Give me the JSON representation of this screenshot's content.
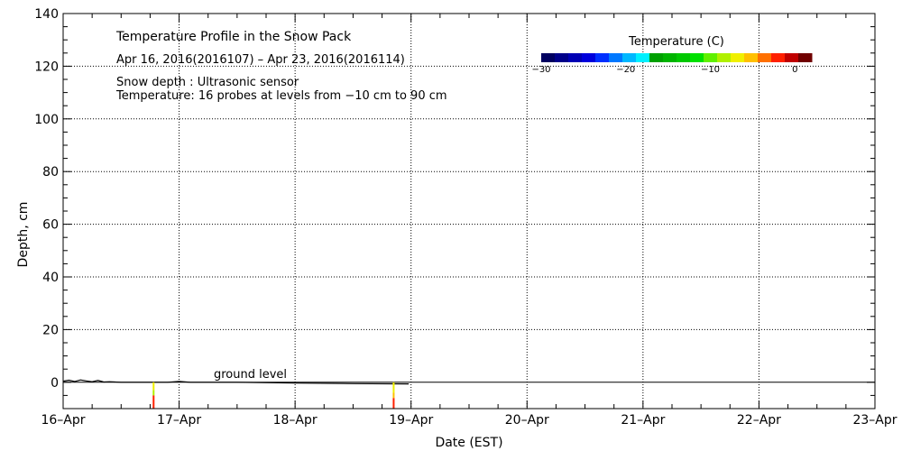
{
  "chart_data": {
    "type": "heatmap",
    "title": "Temperature Profile in the Snow Pack",
    "subtitle": "Apr 16, 2016(2016107) – Apr 23, 2016(2016114)",
    "notes": [
      "Snow depth : Ultrasonic sensor",
      "Temperature: 16 probes at levels from −10 cm to 90 cm"
    ],
    "xlabel": "Date (EST)",
    "ylabel": "Depth, cm",
    "x_ticks": [
      "16–Apr",
      "17–Apr",
      "18–Apr",
      "19–Apr",
      "20–Apr",
      "21–Apr",
      "22–Apr",
      "23–Apr"
    ],
    "y_ticks": [
      "0",
      "20",
      "40",
      "60",
      "80",
      "100",
      "120",
      "140"
    ],
    "xlim": [
      "2016-04-16",
      "2016-04-23"
    ],
    "ylim": [
      -10,
      140
    ],
    "grid": true,
    "ground_level_label": "ground level",
    "colorbar": {
      "title": "Temperature (C)",
      "range": [
        -30,
        2
      ],
      "tick_values": [
        -30,
        -20,
        -10,
        0
      ],
      "tick_labels": [
        "−30",
        "−20",
        "−10",
        "0"
      ],
      "colors": [
        "#000060",
        "#00008a",
        "#0000b4",
        "#0000dc",
        "#0030ff",
        "#0078ff",
        "#00b8ff",
        "#00f0ff",
        "#00a000",
        "#00b400",
        "#00c800",
        "#00e000",
        "#60f000",
        "#b0f000",
        "#f0f000",
        "#ffc000",
        "#ff7000",
        "#ff2000",
        "#c00000",
        "#700000"
      ]
    },
    "series": [
      {
        "type": "snow-depth",
        "points": [
          [
            0.0,
            0.4
          ],
          [
            0.05,
            0.8
          ],
          [
            0.1,
            0.3
          ],
          [
            0.15,
            0.9
          ],
          [
            0.2,
            0.5
          ],
          [
            0.25,
            0.2
          ],
          [
            0.3,
            0.7
          ],
          [
            0.35,
            0.1
          ],
          [
            0.4,
            0.2
          ],
          [
            0.5,
            0.0
          ],
          [
            0.7,
            0.0
          ],
          [
            0.9,
            0.0
          ],
          [
            1.0,
            0.3
          ],
          [
            1.1,
            0.0
          ],
          [
            1.5,
            0.0
          ],
          [
            2.0,
            -0.3
          ],
          [
            2.5,
            -0.5
          ],
          [
            2.98,
            -0.6
          ]
        ]
      },
      {
        "type": "probe-column",
        "x": 0.78,
        "cells": [
          [
            0,
            -3,
            "#f0f000"
          ],
          [
            -3,
            -5,
            "#b0f000"
          ],
          [
            -5,
            -10,
            "#ff2000"
          ]
        ]
      },
      {
        "type": "probe-column",
        "x": 2.85,
        "cells": [
          [
            0,
            -4,
            "#f0f000"
          ],
          [
            -4,
            -6,
            "#ffc000"
          ],
          [
            -6,
            -10,
            "#ff2000"
          ]
        ]
      }
    ]
  }
}
